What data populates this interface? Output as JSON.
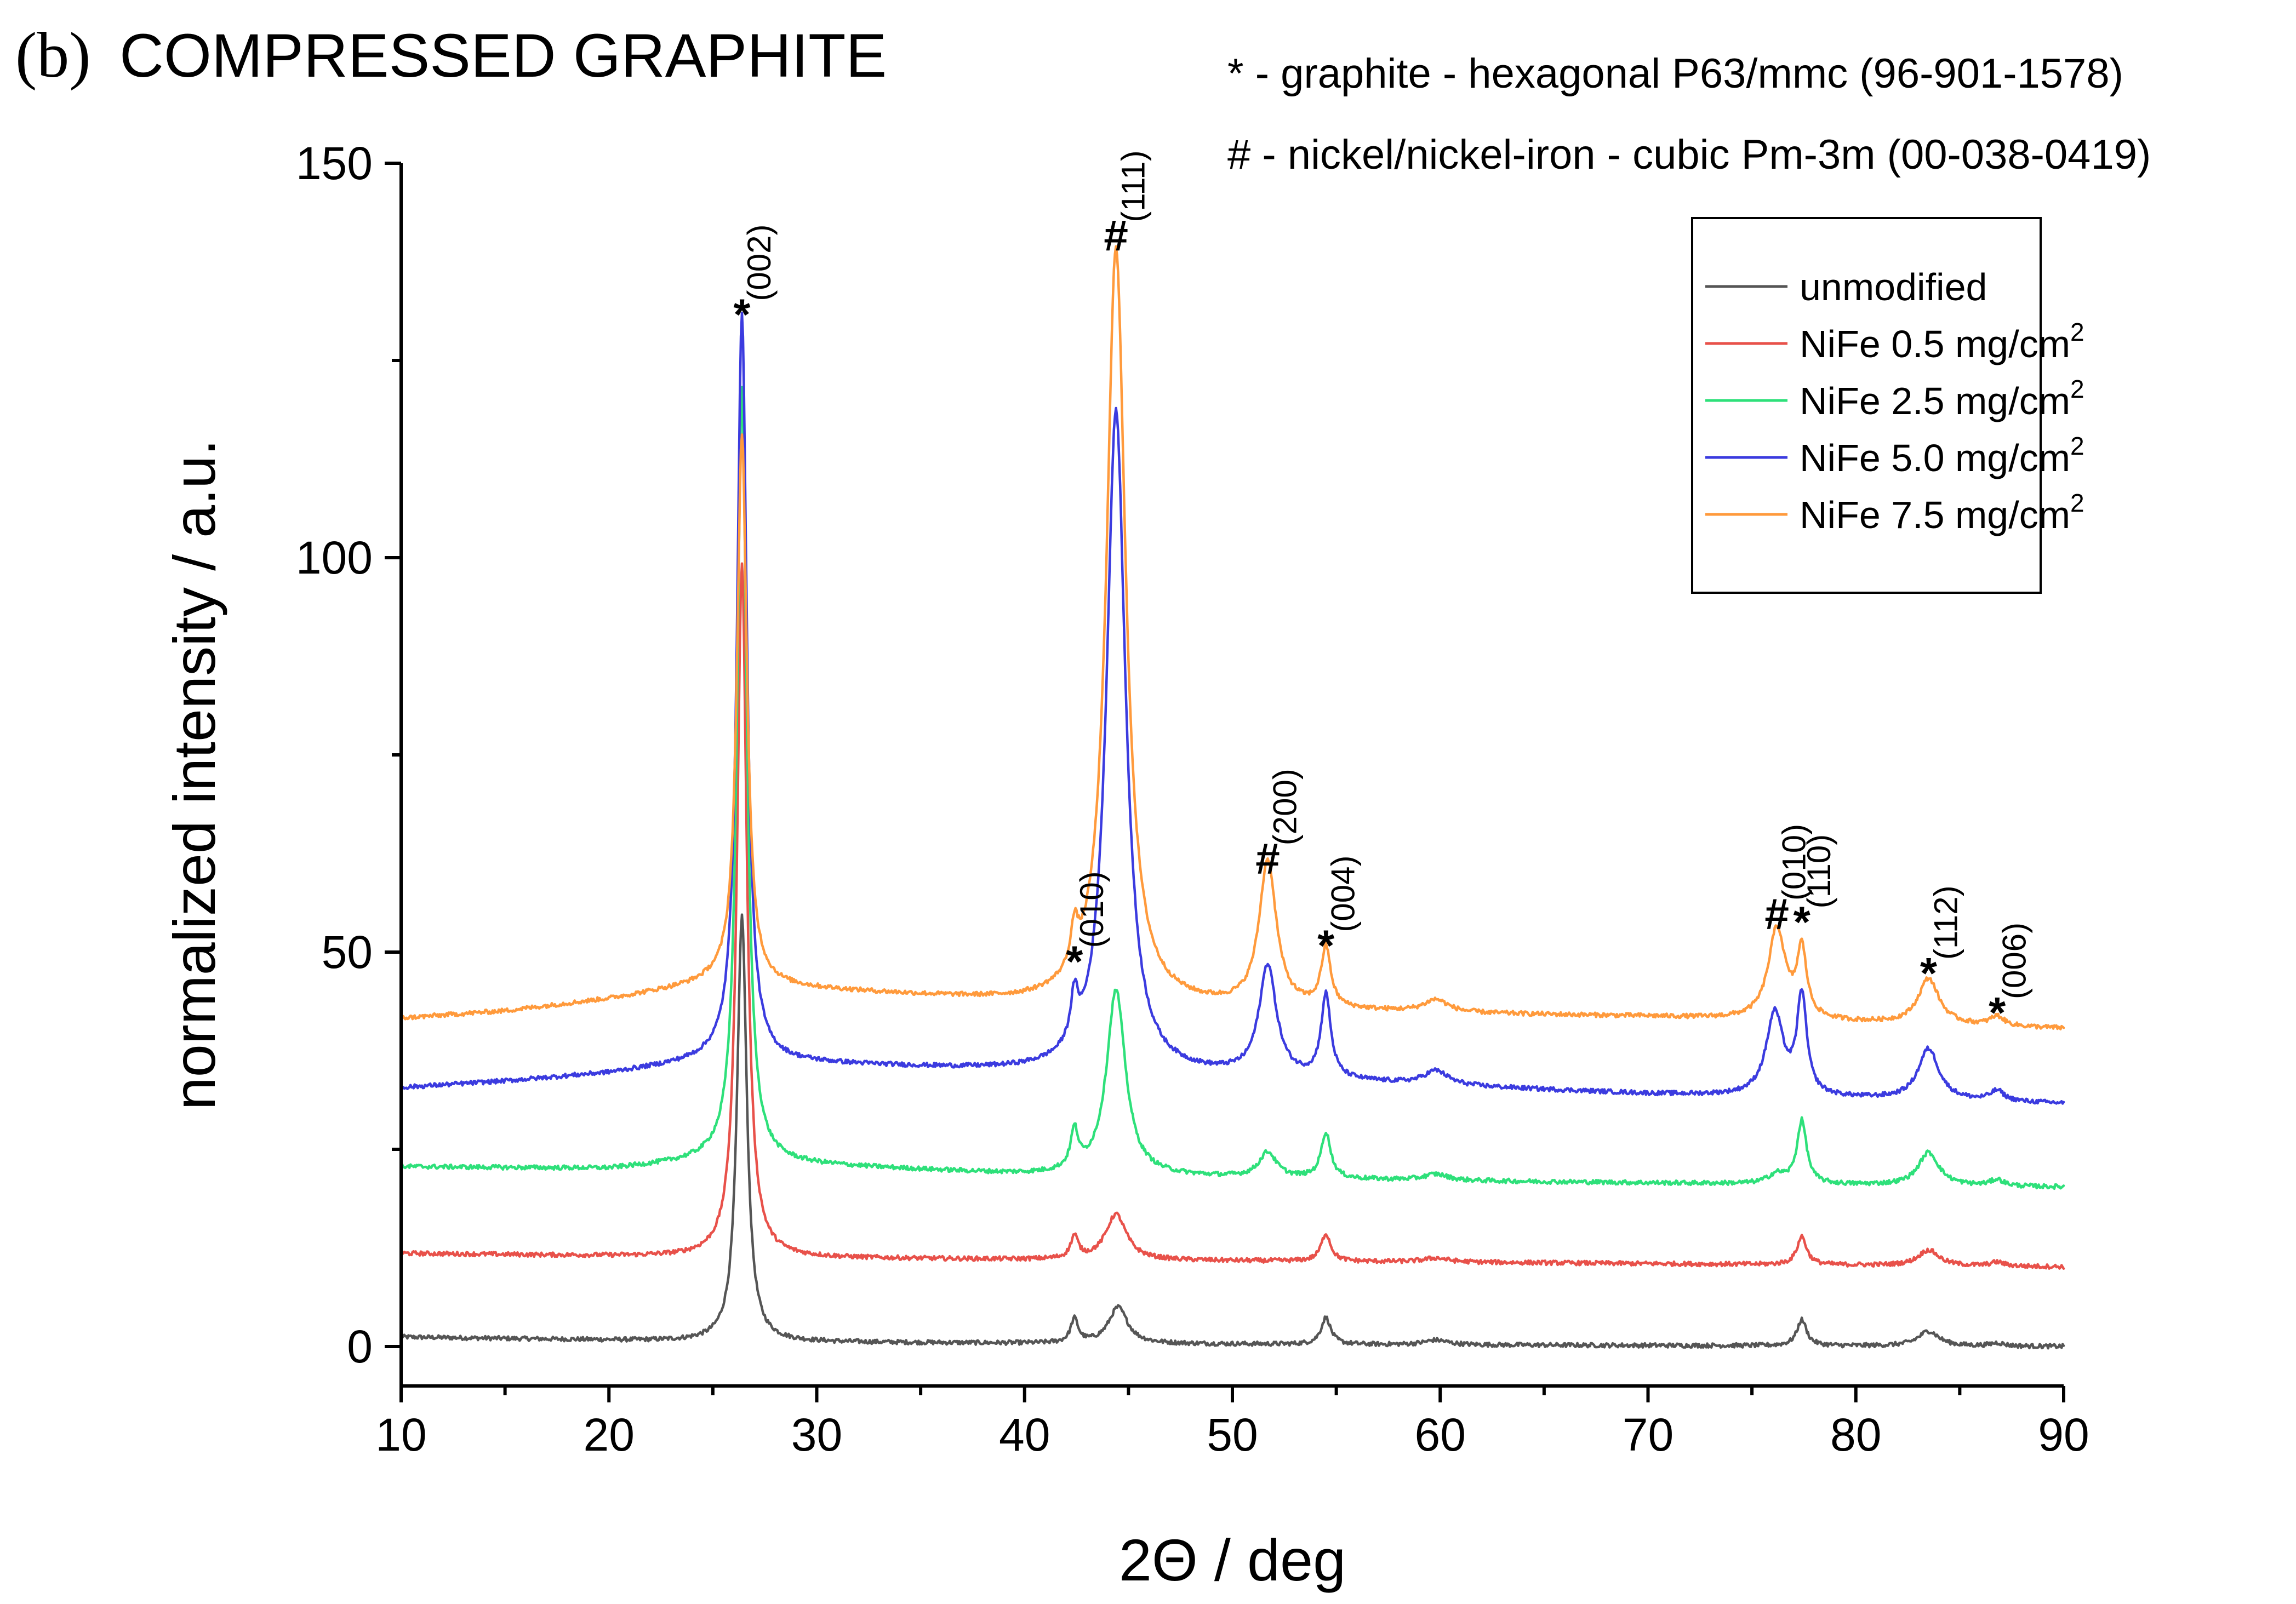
{
  "header": {
    "panel_label": "(b)",
    "title": "COMPRESSED GRAPHITE"
  },
  "notes": [
    "* - graphite - hexagonal P63/mmc (96-901-1578)",
    "# - nickel/nickel-iron - cubic Pm-3m (00-038-0419)"
  ],
  "chart_data": {
    "type": "line",
    "title": "COMPRESSED GRAPHITE",
    "xlabel": "2Θ / deg",
    "ylabel": "normalized intensity / a.u.",
    "xlim": [
      10,
      90
    ],
    "ylim": [
      -5,
      150
    ],
    "xticks": [
      10,
      20,
      30,
      40,
      50,
      60,
      70,
      80,
      90
    ],
    "yticks": [
      0,
      50,
      100,
      150
    ],
    "legend_position": "top-right",
    "series": [
      {
        "name": "unmodified",
        "legend": "unmodified",
        "color": "#555555",
        "baseline": [
          [
            10,
            1.2
          ],
          [
            25,
            0.6
          ],
          [
            40,
            0.4
          ],
          [
            60,
            0.2
          ],
          [
            90,
            0.0
          ]
        ],
        "peaks": [
          {
            "x": 26.4,
            "h": 54,
            "w": 0.28
          },
          {
            "x": 42.4,
            "h": 3.0,
            "w": 0.22
          },
          {
            "x": 44.5,
            "h": 4.6,
            "w": 0.55
          },
          {
            "x": 54.5,
            "h": 3.4,
            "w": 0.28
          },
          {
            "x": 59.8,
            "h": 0.6,
            "w": 0.7
          },
          {
            "x": 77.4,
            "h": 3.3,
            "w": 0.28
          },
          {
            "x": 83.5,
            "h": 1.9,
            "w": 0.6
          },
          {
            "x": 86.8,
            "h": 0.4,
            "w": 0.4
          }
        ]
      },
      {
        "name": "NiFe 0.5 mg/cm2",
        "legend_main": "NiFe 0.5 mg/cm",
        "legend_sup": "2",
        "color": "#e8514a",
        "baseline": [
          [
            10,
            11.8
          ],
          [
            25,
            11.3
          ],
          [
            40,
            11.0
          ],
          [
            60,
            10.7
          ],
          [
            90,
            10.1
          ]
        ],
        "peaks": [
          {
            "x": 26.4,
            "h": 88,
            "w": 0.28
          },
          {
            "x": 42.4,
            "h": 2.8,
            "w": 0.22
          },
          {
            "x": 44.4,
            "h": 5.8,
            "w": 0.6
          },
          {
            "x": 54.5,
            "h": 3.5,
            "w": 0.28
          },
          {
            "x": 59.8,
            "h": 0.5,
            "w": 0.7
          },
          {
            "x": 77.4,
            "h": 3.6,
            "w": 0.28
          },
          {
            "x": 83.5,
            "h": 2.0,
            "w": 0.6
          },
          {
            "x": 86.8,
            "h": 0.5,
            "w": 0.4
          }
        ]
      },
      {
        "name": "NiFe 2.5 mg/cm2",
        "legend_main": "NiFe 2.5 mg/cm",
        "legend_sup": "2",
        "color": "#2ee07a",
        "baseline": [
          [
            10,
            22.8
          ],
          [
            20,
            22.5
          ],
          [
            25,
            23.5
          ],
          [
            40,
            21.8
          ],
          [
            60,
            21.0
          ],
          [
            90,
            20.2
          ]
        ],
        "peaks": [
          {
            "x": 26.4,
            "h": 98,
            "w": 0.28
          },
          {
            "x": 42.4,
            "h": 4.8,
            "w": 0.22
          },
          {
            "x": 44.4,
            "h": 23.5,
            "w": 0.55
          },
          {
            "x": 51.7,
            "h": 3.2,
            "w": 0.5
          },
          {
            "x": 54.5,
            "h": 5.8,
            "w": 0.28
          },
          {
            "x": 59.8,
            "h": 0.8,
            "w": 0.7
          },
          {
            "x": 76.2,
            "h": 1.2,
            "w": 0.5
          },
          {
            "x": 77.4,
            "h": 8.0,
            "w": 0.28
          },
          {
            "x": 83.5,
            "h": 4.2,
            "w": 0.6
          },
          {
            "x": 86.8,
            "h": 0.8,
            "w": 0.4
          }
        ]
      },
      {
        "name": "NiFe 5.0 mg/cm2",
        "legend_main": "NiFe 5.0 mg/cm",
        "legend_sup": "2",
        "color": "#3b3bdf",
        "baseline": [
          [
            10,
            32.8
          ],
          [
            15,
            33.6
          ],
          [
            20,
            34.6
          ],
          [
            25,
            36.2
          ],
          [
            30,
            35.8
          ],
          [
            40,
            34.8
          ],
          [
            50,
            34.2
          ],
          [
            60,
            33.0
          ],
          [
            70,
            32.0
          ],
          [
            90,
            30.8
          ]
        ],
        "peaks": [
          {
            "x": 26.4,
            "h": 95,
            "w": 0.28
          },
          {
            "x": 42.4,
            "h": 5.8,
            "w": 0.22
          },
          {
            "x": 44.4,
            "h": 84,
            "w": 0.55
          },
          {
            "x": 51.7,
            "h": 14,
            "w": 0.5
          },
          {
            "x": 54.5,
            "h": 10.5,
            "w": 0.28
          },
          {
            "x": 59.8,
            "h": 1.8,
            "w": 0.7
          },
          {
            "x": 76.1,
            "h": 10.5,
            "w": 0.5
          },
          {
            "x": 77.4,
            "h": 12.5,
            "w": 0.28
          },
          {
            "x": 83.5,
            "h": 6.5,
            "w": 0.6
          },
          {
            "x": 86.8,
            "h": 1.3,
            "w": 0.4
          }
        ]
      },
      {
        "name": "NiFe 7.5 mg/cm2",
        "legend_main": "NiFe 7.5 mg/cm",
        "legend_sup": "2",
        "color": "#ff9a3c",
        "baseline": [
          [
            10,
            41.6
          ],
          [
            15,
            42.5
          ],
          [
            20,
            44.0
          ],
          [
            25,
            46.0
          ],
          [
            30,
            45.2
          ],
          [
            40,
            43.6
          ],
          [
            50,
            42.8
          ],
          [
            60,
            42.2
          ],
          [
            70,
            41.8
          ],
          [
            90,
            40.3
          ]
        ],
        "peaks": [
          {
            "x": 26.4,
            "h": 70,
            "w": 0.28
          },
          {
            "x": 42.4,
            "h": 5.0,
            "w": 0.22
          },
          {
            "x": 44.4,
            "h": 96,
            "w": 0.55
          },
          {
            "x": 51.7,
            "h": 18.5,
            "w": 0.5
          },
          {
            "x": 54.5,
            "h": 7.5,
            "w": 0.28
          },
          {
            "x": 59.8,
            "h": 1.6,
            "w": 0.7
          },
          {
            "x": 76.2,
            "h": 11.5,
            "w": 0.5
          },
          {
            "x": 77.4,
            "h": 8.5,
            "w": 0.28
          },
          {
            "x": 83.5,
            "h": 5.8,
            "w": 0.6
          },
          {
            "x": 86.8,
            "h": 1.2,
            "w": 0.4
          }
        ]
      }
    ],
    "annotations": [
      {
        "marker": "*",
        "hkl": "(002)",
        "x": 26.4,
        "y": 131
      },
      {
        "marker": "*",
        "hkl": "(010)",
        "x": 42.4,
        "y": 49
      },
      {
        "marker": "#",
        "hkl": "(111)",
        "x": 44.4,
        "y": 141
      },
      {
        "marker": "#",
        "hkl": "(200)",
        "x": 51.7,
        "y": 62
      },
      {
        "marker": "*",
        "hkl": "(004)",
        "x": 54.5,
        "y": 51
      },
      {
        "marker": "#",
        "hkl": "(010)",
        "x": 76.2,
        "y": 55
      },
      {
        "marker": "*",
        "hkl": "(110)",
        "x": 77.4,
        "y": 54
      },
      {
        "marker": "*",
        "hkl": "(112)",
        "x": 83.5,
        "y": 47.5
      },
      {
        "marker": "*",
        "hkl": "(006)",
        "x": 86.8,
        "y": 42.5
      }
    ]
  }
}
